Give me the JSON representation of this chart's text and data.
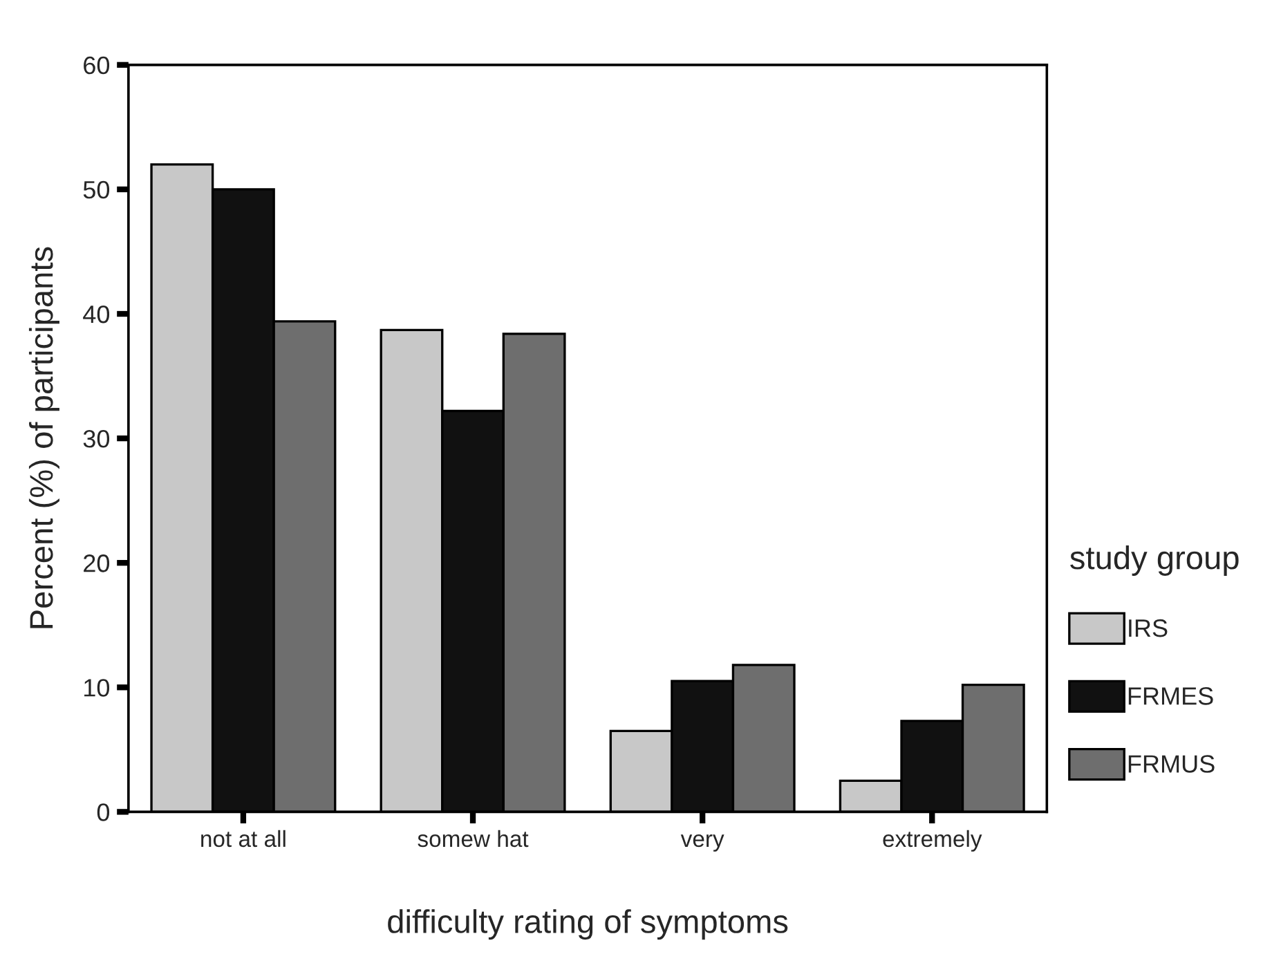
{
  "chart_data": {
    "type": "bar",
    "xlabel": "difficulty rating of symptoms",
    "ylabel": "Percent (%) of participants",
    "legend_title": "study group",
    "categories": [
      "not at all",
      "somew hat",
      "very",
      "extremely"
    ],
    "series": [
      {
        "name": "IRS",
        "color": "#c8c8c8",
        "values": [
          52.0,
          38.7,
          6.5,
          2.5
        ]
      },
      {
        "name": "FRMES",
        "color": "#111111",
        "values": [
          50.0,
          32.2,
          10.5,
          7.3
        ]
      },
      {
        "name": "FRMUS",
        "color": "#6e6e6e",
        "values": [
          39.4,
          38.4,
          11.8,
          10.2
        ]
      }
    ],
    "ylim": [
      0,
      60
    ],
    "yticks": [
      0,
      10,
      20,
      30,
      40,
      50,
      60
    ],
    "grid": false,
    "legend": "right"
  }
}
